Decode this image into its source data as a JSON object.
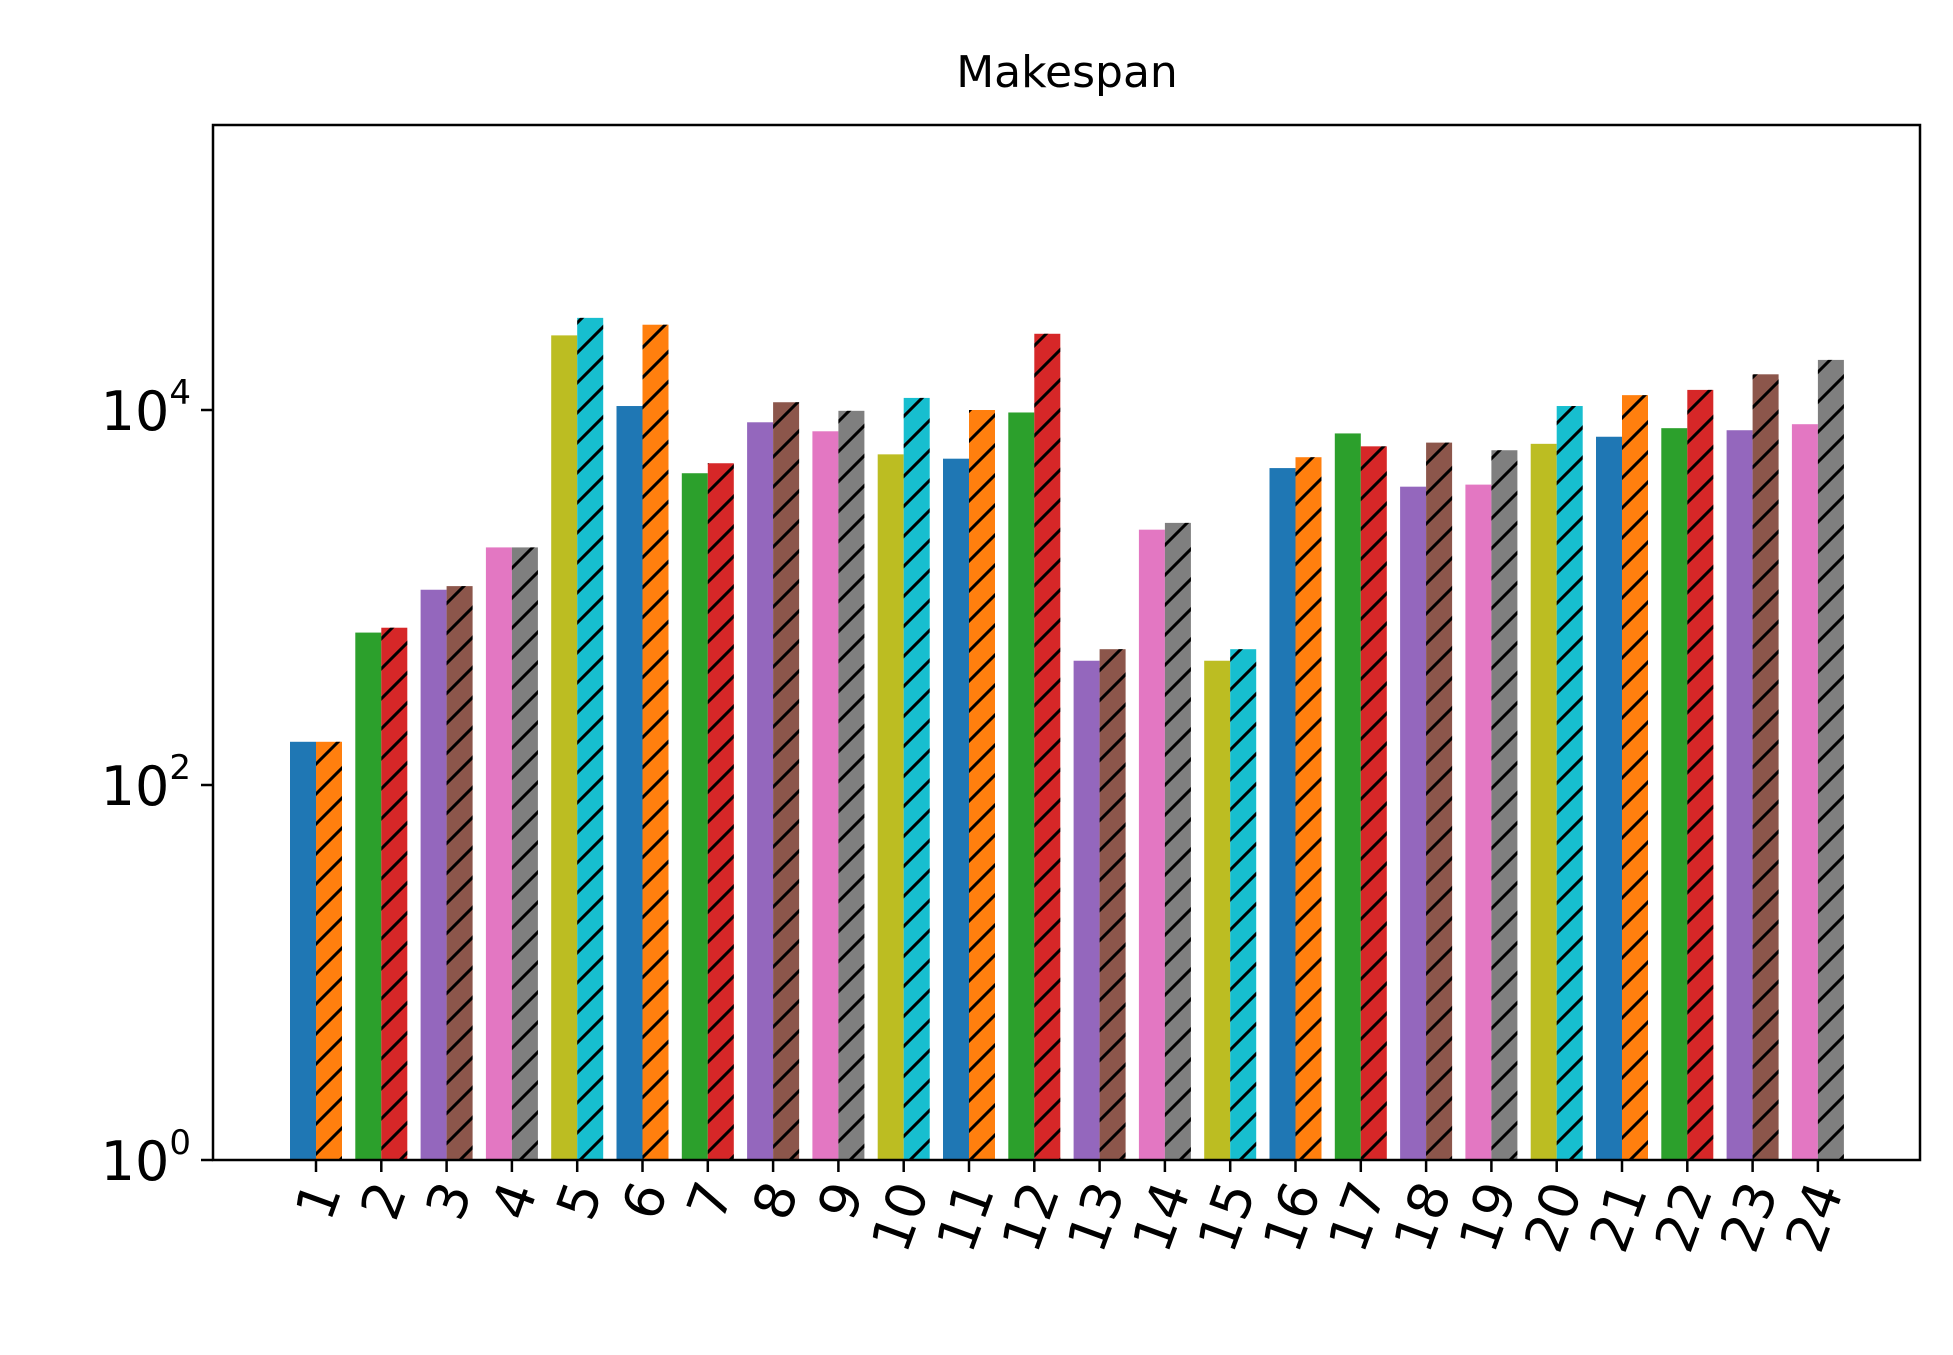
{
  "chart_data": {
    "type": "bar",
    "title": "Makespan",
    "xlabel": "",
    "ylabel": "",
    "yscale": "log",
    "ylim": [
      1,
      400000
    ],
    "y_ticks": [
      {
        "value": 1,
        "base": "10",
        "exp": "0"
      },
      {
        "value": 100,
        "base": "10",
        "exp": "2"
      },
      {
        "value": 10000,
        "base": "10",
        "exp": "4"
      }
    ],
    "categories": [
      "1",
      "2",
      "3",
      "4",
      "5",
      "6",
      "7",
      "8",
      "9",
      "10",
      "11",
      "12",
      "13",
      "14",
      "15",
      "16",
      "17",
      "18",
      "19",
      "20",
      "21",
      "22",
      "23",
      "24"
    ],
    "tick_rotation_deg": 70,
    "grid": false,
    "legend": "none",
    "hatch_pattern": "diagonal lines on second bar of each pair",
    "bars": [
      {
        "x": "1",
        "value": 170,
        "color": "#1f77b4",
        "hatched": false
      },
      {
        "x": "1",
        "value": 170,
        "color": "#ff7f0e",
        "hatched": true
      },
      {
        "x": "2",
        "value": 650,
        "color": "#2ca02c",
        "hatched": false
      },
      {
        "x": "2",
        "value": 690,
        "color": "#d62728",
        "hatched": true
      },
      {
        "x": "3",
        "value": 1100,
        "color": "#9467bd",
        "hatched": false
      },
      {
        "x": "3",
        "value": 1150,
        "color": "#8c564b",
        "hatched": true
      },
      {
        "x": "4",
        "value": 1850,
        "color": "#e377c2",
        "hatched": false
      },
      {
        "x": "4",
        "value": 1850,
        "color": "#7f7f7f",
        "hatched": true
      },
      {
        "x": "5",
        "value": 25000,
        "color": "#bcbd22",
        "hatched": false
      },
      {
        "x": "5",
        "value": 31000,
        "color": "#17becf",
        "hatched": true
      },
      {
        "x": "6",
        "value": 10500,
        "color": "#1f77b4",
        "hatched": false
      },
      {
        "x": "6",
        "value": 28500,
        "color": "#ff7f0e",
        "hatched": true
      },
      {
        "x": "7",
        "value": 4600,
        "color": "#2ca02c",
        "hatched": false
      },
      {
        "x": "7",
        "value": 5200,
        "color": "#d62728",
        "hatched": true
      },
      {
        "x": "8",
        "value": 8600,
        "color": "#9467bd",
        "hatched": false
      },
      {
        "x": "8",
        "value": 11000,
        "color": "#8c564b",
        "hatched": true
      },
      {
        "x": "9",
        "value": 7700,
        "color": "#e377c2",
        "hatched": false
      },
      {
        "x": "9",
        "value": 9900,
        "color": "#7f7f7f",
        "hatched": true
      },
      {
        "x": "10",
        "value": 5800,
        "color": "#bcbd22",
        "hatched": false
      },
      {
        "x": "10",
        "value": 11600,
        "color": "#17becf",
        "hatched": true
      },
      {
        "x": "11",
        "value": 5500,
        "color": "#1f77b4",
        "hatched": false
      },
      {
        "x": "11",
        "value": 10000,
        "color": "#ff7f0e",
        "hatched": true
      },
      {
        "x": "12",
        "value": 9700,
        "color": "#2ca02c",
        "hatched": false
      },
      {
        "x": "12",
        "value": 25500,
        "color": "#d62728",
        "hatched": true
      },
      {
        "x": "13",
        "value": 460,
        "color": "#9467bd",
        "hatched": false
      },
      {
        "x": "13",
        "value": 530,
        "color": "#8c564b",
        "hatched": true
      },
      {
        "x": "14",
        "value": 2300,
        "color": "#e377c2",
        "hatched": false
      },
      {
        "x": "14",
        "value": 2500,
        "color": "#7f7f7f",
        "hatched": true
      },
      {
        "x": "15",
        "value": 460,
        "color": "#bcbd22",
        "hatched": false
      },
      {
        "x": "15",
        "value": 530,
        "color": "#17becf",
        "hatched": true
      },
      {
        "x": "16",
        "value": 4900,
        "color": "#1f77b4",
        "hatched": false
      },
      {
        "x": "16",
        "value": 5600,
        "color": "#ff7f0e",
        "hatched": true
      },
      {
        "x": "17",
        "value": 7500,
        "color": "#2ca02c",
        "hatched": false
      },
      {
        "x": "17",
        "value": 6400,
        "color": "#d62728",
        "hatched": true
      },
      {
        "x": "18",
        "value": 3900,
        "color": "#9467bd",
        "hatched": false
      },
      {
        "x": "18",
        "value": 6700,
        "color": "#8c564b",
        "hatched": true
      },
      {
        "x": "19",
        "value": 4000,
        "color": "#e377c2",
        "hatched": false
      },
      {
        "x": "19",
        "value": 6100,
        "color": "#7f7f7f",
        "hatched": true
      },
      {
        "x": "20",
        "value": 6600,
        "color": "#bcbd22",
        "hatched": false
      },
      {
        "x": "20",
        "value": 10500,
        "color": "#17becf",
        "hatched": true
      },
      {
        "x": "21",
        "value": 7200,
        "color": "#1f77b4",
        "hatched": false
      },
      {
        "x": "21",
        "value": 12000,
        "color": "#ff7f0e",
        "hatched": true
      },
      {
        "x": "22",
        "value": 8000,
        "color": "#2ca02c",
        "hatched": false
      },
      {
        "x": "22",
        "value": 12800,
        "color": "#d62728",
        "hatched": true
      },
      {
        "x": "23",
        "value": 7800,
        "color": "#9467bd",
        "hatched": false
      },
      {
        "x": "23",
        "value": 15500,
        "color": "#8c564b",
        "hatched": true
      },
      {
        "x": "24",
        "value": 8400,
        "color": "#e377c2",
        "hatched": false
      },
      {
        "x": "24",
        "value": 18500,
        "color": "#7f7f7f",
        "hatched": true
      }
    ]
  }
}
